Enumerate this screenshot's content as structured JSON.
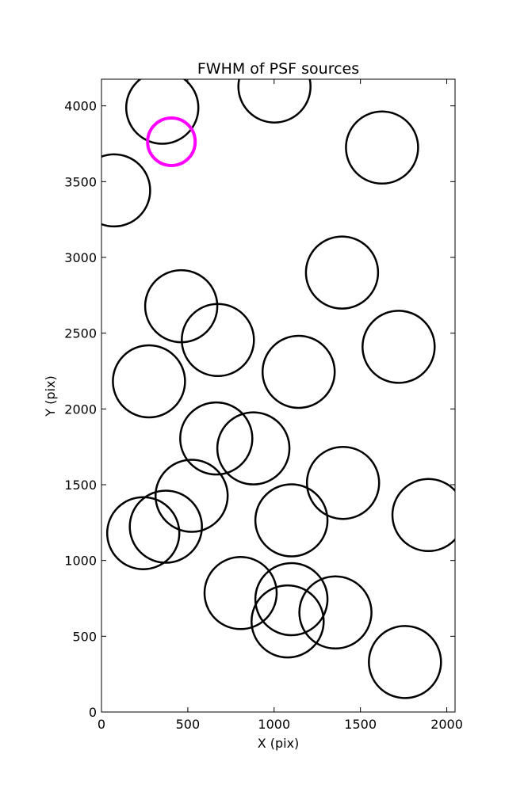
{
  "chart_data": {
    "type": "scatter",
    "title": "FWHM of PSF sources",
    "xlabel": "X (pix)",
    "ylabel": "Y (pix)",
    "xlim": [
      0,
      2048
    ],
    "ylim": [
      0,
      4176
    ],
    "xticks": [
      0,
      500,
      1000,
      1500,
      2000
    ],
    "yticks": [
      0,
      500,
      1000,
      1500,
      2000,
      2500,
      3000,
      3500,
      4000
    ],
    "grid": false,
    "marker": "open-circle",
    "colors": {
      "default": "#000000",
      "highlight": "#ff00ff"
    },
    "sources": [
      {
        "x": 352,
        "y": 3988,
        "highlight": false
      },
      {
        "x": 1002,
        "y": 4128,
        "highlight": false
      },
      {
        "x": 405,
        "y": 3763,
        "highlight": true
      },
      {
        "x": 73,
        "y": 3442,
        "highlight": false
      },
      {
        "x": 1625,
        "y": 3725,
        "highlight": false
      },
      {
        "x": 1393,
        "y": 2900,
        "highlight": false
      },
      {
        "x": 462,
        "y": 2678,
        "highlight": false
      },
      {
        "x": 674,
        "y": 2455,
        "highlight": false
      },
      {
        "x": 1721,
        "y": 2410,
        "highlight": false
      },
      {
        "x": 1142,
        "y": 2245,
        "highlight": false
      },
      {
        "x": 275,
        "y": 2182,
        "highlight": false
      },
      {
        "x": 665,
        "y": 1805,
        "highlight": false
      },
      {
        "x": 880,
        "y": 1740,
        "highlight": false
      },
      {
        "x": 1399,
        "y": 1512,
        "highlight": false
      },
      {
        "x": 522,
        "y": 1427,
        "highlight": false
      },
      {
        "x": 1894,
        "y": 1300,
        "highlight": false
      },
      {
        "x": 1100,
        "y": 1265,
        "highlight": false
      },
      {
        "x": 373,
        "y": 1223,
        "highlight": false
      },
      {
        "x": 242,
        "y": 1180,
        "highlight": false
      },
      {
        "x": 806,
        "y": 785,
        "highlight": false
      },
      {
        "x": 1100,
        "y": 745,
        "highlight": false
      },
      {
        "x": 1355,
        "y": 657,
        "highlight": false
      },
      {
        "x": 1078,
        "y": 598,
        "highlight": false
      },
      {
        "x": 1758,
        "y": 330,
        "highlight": false
      }
    ]
  }
}
